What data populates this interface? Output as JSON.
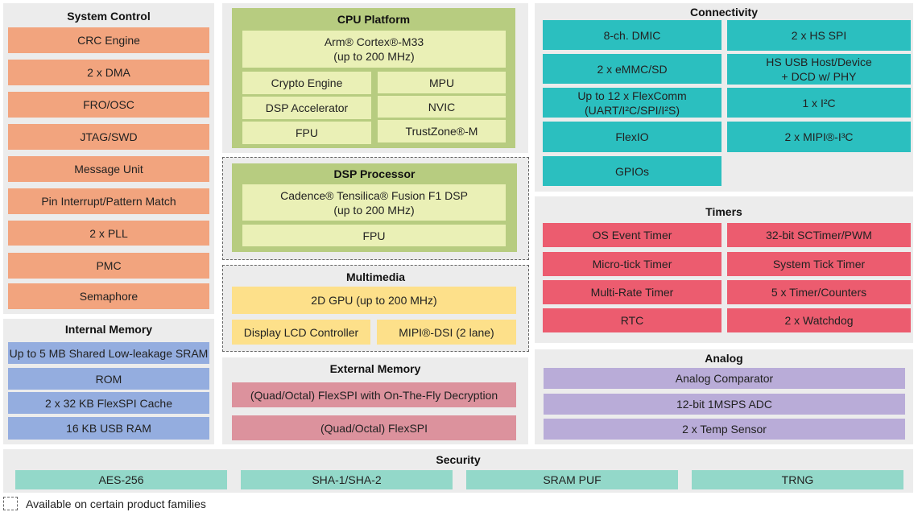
{
  "system_control": {
    "title": "System Control",
    "items": [
      "CRC Engine",
      "2 x DMA",
      "FRO/OSC",
      "JTAG/SWD",
      "Message Unit",
      "Pin Interrupt/Pattern Match",
      "2 x PLL",
      "PMC",
      "Semaphore"
    ]
  },
  "internal_memory": {
    "title": "Internal Memory",
    "items": [
      "Up to 5 MB Shared Low-leakage SRAM",
      "ROM",
      "2 x 32 KB FlexSPI Cache",
      "16 KB USB RAM"
    ]
  },
  "cpu_platform": {
    "title": "CPU Platform",
    "core": "Arm® Cortex®-M33\n(up to 200 MHz)",
    "items": [
      "Crypto Engine",
      "MPU",
      "DSP Accelerator",
      "NVIC",
      "FPU",
      "TrustZone®-M"
    ]
  },
  "dsp_processor": {
    "title": "DSP Processor",
    "core": "Cadence® Tensilica® Fusion F1 DSP\n(up to 200 MHz)",
    "fpu": "FPU"
  },
  "multimedia": {
    "title": "Multimedia",
    "items": [
      "2D GPU (up to 200 MHz)",
      "Display LCD Controller",
      "MIPI®-DSI (2 lane)"
    ]
  },
  "external_memory": {
    "title": "External Memory",
    "items": [
      "(Quad/Octal) FlexSPI with On-The-Fly Decryption",
      "(Quad/Octal) FlexSPI"
    ]
  },
  "connectivity": {
    "title": "Connectivity",
    "items": [
      "8-ch. DMIC",
      "2 x HS SPI",
      "2 x eMMC/SD",
      "HS USB Host/Device\n+ DCD w/ PHY",
      "Up to 12 x FlexComm\n(UART/I²C/SPI/I²S)",
      "1 x I²C",
      "FlexIO",
      "2 x MIPI®-I³C",
      "GPIOs"
    ]
  },
  "timers": {
    "title": "Timers",
    "items": [
      "OS Event Timer",
      "32-bit SCTimer/PWM",
      "Micro-tick Timer",
      "System Tick Timer",
      "Multi-Rate Timer",
      "5 x Timer/Counters",
      "RTC",
      "2 x Watchdog"
    ]
  },
  "analog": {
    "title": "Analog",
    "items": [
      "Analog Comparator",
      "12-bit 1MSPS ADC",
      "2 x Temp Sensor"
    ]
  },
  "security": {
    "title": "Security",
    "items": [
      "AES-256",
      "SHA-1/SHA-2",
      "SRAM PUF",
      "TRNG"
    ]
  },
  "legend": {
    "text": "Available on certain product families"
  },
  "colors": {
    "system_control": "#f2a47e",
    "internal_memory": "#94addf",
    "cpu": "#b7cc80",
    "multimedia": "#fde08a",
    "external_memory": "#dc929d",
    "connectivity": "#2bbfbf",
    "timers": "#ec5c6f",
    "analog": "#b9acd8",
    "security": "#93d8c9"
  }
}
